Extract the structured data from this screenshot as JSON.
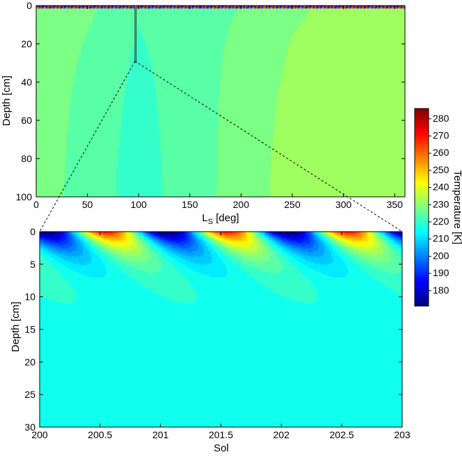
{
  "chart_data": [
    {
      "type": "heatmap",
      "xlabel": "L",
      "xlabel_sub": "S",
      "xlabel_unit": "[deg]",
      "ylabel": "Depth [cm]",
      "xlim": [
        0,
        360
      ],
      "ylim": [
        0,
        100
      ],
      "y_reversed": true,
      "xticks": [
        0,
        50,
        100,
        150,
        200,
        250,
        300,
        350
      ],
      "yticks": [
        0,
        20,
        40,
        60,
        80,
        100
      ],
      "xtick_labels": [
        "0",
        "50",
        "100",
        "150",
        "200",
        "250",
        "300",
        "350"
      ],
      "ytick_labels": [
        "0",
        "20",
        "40",
        "60",
        "80",
        "100"
      ],
      "marker_ls": 97,
      "marker_depth_range": [
        0,
        30
      ],
      "description_values": {
        "surface_range_K": [
          175,
          285
        ],
        "deep_temperature_by_ls": [
          {
            "ls": 0,
            "temp": 228
          },
          {
            "ls": 50,
            "temp": 224
          },
          {
            "ls": 100,
            "temp": 220
          },
          {
            "ls": 150,
            "temp": 224
          },
          {
            "ls": 200,
            "temp": 228
          },
          {
            "ls": 250,
            "temp": 232
          },
          {
            "ls": 300,
            "temp": 234
          },
          {
            "ls": 360,
            "temp": 230
          }
        ]
      }
    },
    {
      "type": "heatmap",
      "xlabel": "Sol",
      "ylabel": "Depth [cm]",
      "xlim": [
        200,
        203
      ],
      "ylim": [
        0,
        30
      ],
      "y_reversed": true,
      "xticks": [
        200,
        200.5,
        201,
        201.5,
        202,
        202.5,
        203
      ],
      "yticks": [
        0,
        5,
        10,
        15,
        20,
        25,
        30
      ],
      "xtick_labels": [
        "200",
        "200.5",
        "201",
        "201.5",
        "202",
        "202.5",
        "203"
      ],
      "ytick_labels": [
        "0",
        "5",
        "10",
        "15",
        "20",
        "25",
        "30"
      ],
      "diurnal": {
        "mean_K": 218,
        "surface_amplitude_K": 52,
        "damping_depth_cm": 2.6,
        "peak_phase_sol": 0.55,
        "deep_temperature_K": 217
      }
    }
  ],
  "colorbar": {
    "label": "Temperature [K]",
    "min": 171,
    "max": 286,
    "ticks": [
      180,
      190,
      200,
      210,
      220,
      230,
      240,
      250,
      260,
      270,
      280
    ],
    "tick_labels": [
      "180",
      "190",
      "200",
      "210",
      "220",
      "230",
      "240",
      "250",
      "260",
      "270",
      "280"
    ]
  }
}
